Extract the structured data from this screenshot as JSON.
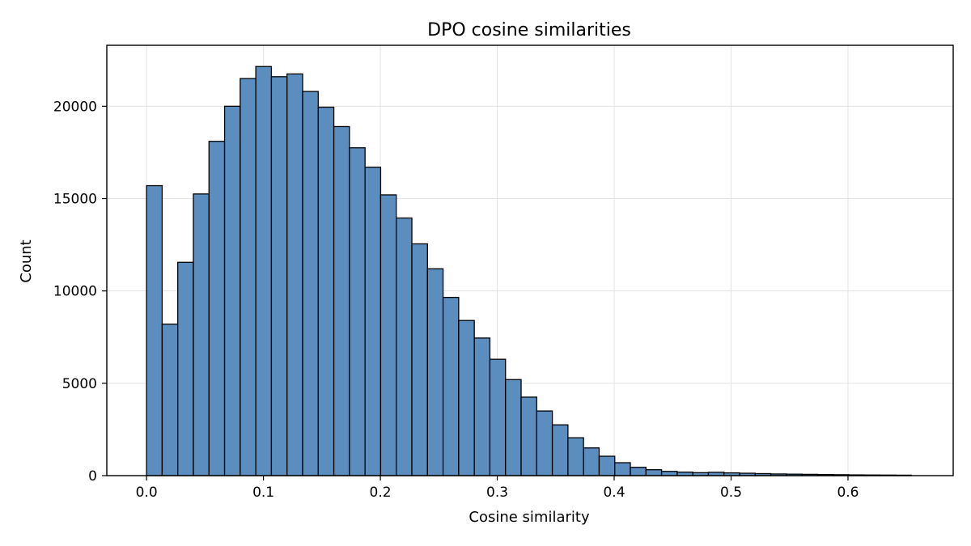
{
  "chart_data": {
    "type": "bar",
    "subtype": "histogram",
    "title": "DPO cosine similarities",
    "xlabel": "Cosine similarity",
    "ylabel": "Count",
    "bin_width": 0.01335,
    "bin_start": 0.0,
    "values": [
      15700,
      8200,
      11550,
      15250,
      18100,
      20000,
      21500,
      22150,
      21600,
      21750,
      20800,
      19950,
      18900,
      17750,
      16700,
      15200,
      13950,
      12550,
      11200,
      9650,
      8400,
      7450,
      6300,
      5200,
      4250,
      3500,
      2750,
      2050,
      1500,
      1050,
      700,
      450,
      320,
      230,
      190,
      160,
      180,
      150,
      130,
      110,
      90,
      80,
      70,
      60,
      50,
      40,
      35,
      30,
      25
    ],
    "xlim": [
      -0.034,
      0.69
    ],
    "ylim": [
      0,
      23300
    ],
    "xticks": [
      0.0,
      0.1,
      0.2,
      0.3,
      0.4,
      0.5,
      0.6
    ],
    "xtick_labels": [
      "0.0",
      "0.1",
      "0.2",
      "0.3",
      "0.4",
      "0.5",
      "0.6"
    ],
    "yticks": [
      0,
      5000,
      10000,
      15000,
      20000
    ],
    "ytick_labels": [
      "0",
      "5000",
      "10000",
      "15000",
      "20000"
    ],
    "grid": true,
    "colors": {
      "bar_fill": "#5b8dbe",
      "bar_edge": "#000000",
      "grid": "#e3e3e3"
    }
  }
}
